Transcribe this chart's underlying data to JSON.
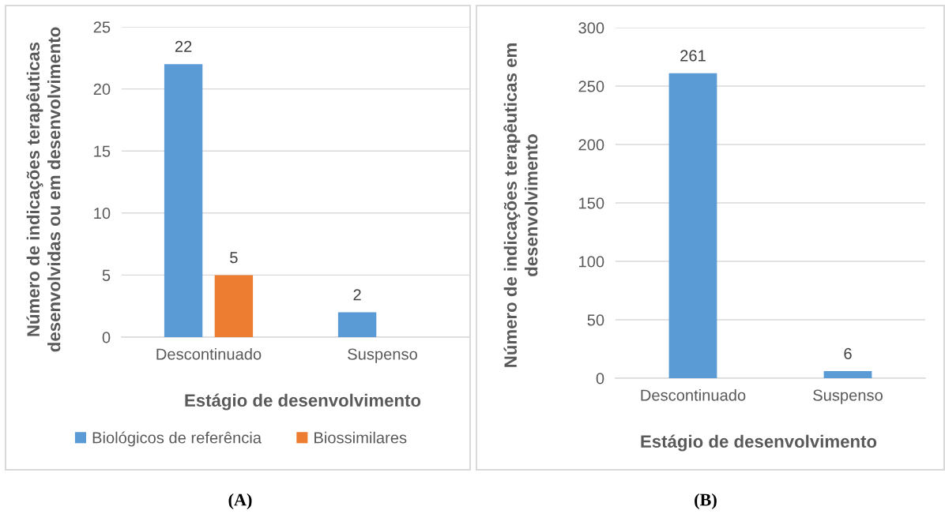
{
  "chart_data": [
    {
      "type": "bar",
      "categories": [
        "Descontinuado",
        "Suspenso"
      ],
      "series": [
        {
          "name": "Biológicos de referência",
          "color": "#5b9bd5",
          "values": [
            22,
            2
          ]
        },
        {
          "name": "Biossimilares",
          "color": "#ed7d31",
          "values": [
            5,
            null
          ]
        }
      ],
      "xlabel": "Estágio de desenvolvimento",
      "ylabel": "Número de indicações terapêuticas\ndesenvolvidas ou em desenvolvimento",
      "ylim": [
        0,
        25
      ],
      "yticks": [
        0,
        5,
        10,
        15,
        20,
        25
      ],
      "grid": "y",
      "legend": "bottom",
      "data_labels": true,
      "annotations": [
        "(A)"
      ]
    },
    {
      "type": "bar",
      "categories": [
        "Descontinuado",
        "Suspenso"
      ],
      "series": [
        {
          "color": "#5b9bd5",
          "values": [
            261,
            6
          ]
        }
      ],
      "xlabel": "Estágio de desenvolvimento",
      "ylabel": "Número de indicações terapêuticas em\ndesenvolvimento",
      "ylim": [
        0,
        300
      ],
      "yticks": [
        0,
        50,
        100,
        150,
        200,
        250,
        300
      ],
      "grid": "y",
      "data_labels": true,
      "annotations": [
        "(B)"
      ]
    }
  ]
}
